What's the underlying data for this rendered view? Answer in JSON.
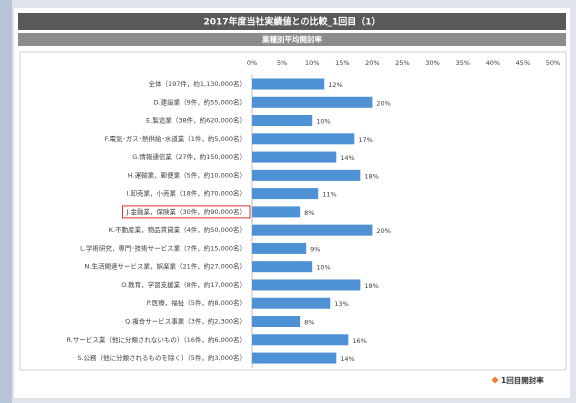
{
  "chart_data": {
    "type": "barh",
    "title": "2017年度当社実績値との比較_1回目（1）",
    "subtitle": "業種別平均開封率",
    "categories": [
      "全体（197件，約1,130,000名）",
      "D.建設業（9件，約55,000名）",
      "E.製造業（38件，約620,000名）",
      "F.電気･ガス･熱供給･水道業（1件，約5,000名）",
      "G.情報通信業（27件，約150,000名）",
      "H.運輸業，郵便業（5件，約10,000名）",
      "I.卸売業，小売業（18件，約70,000名）",
      "J.金融業，保険業（30件，約90,000名）",
      "K.不動産業，物品賃貸業（4件，約50,000名）",
      "L.学術研究，専門･技術サービス業（7件，約15,000名）",
      "N.生活関連サービス業，娯楽業（21件，約27,000名）",
      "O.教育，学習支援業（8件，約17,000名）",
      "P.医療，福祉（5件，約8,000名）",
      "Q.複合サービス事業（3件，約2,300名）",
      "R.サービス業（他に分類されないもの）（16件，約6,000名）",
      "S.公務（他に分類されるものを除く）（5件，約3,000名）"
    ],
    "series": [
      {
        "name": "1回目開封率",
        "color": "#4e91d4",
        "marker_color": "#ed7d31",
        "values": [
          12,
          20,
          10,
          17,
          14,
          18,
          11,
          8,
          20,
          9,
          10,
          18,
          13,
          8,
          16,
          14
        ],
        "value_labels": [
          "12%",
          "20%",
          "10%",
          "17%",
          "14%",
          "18%",
          "11%",
          "8%",
          "20%",
          "9%",
          "10%",
          "18%",
          "13%",
          "8%",
          "16%",
          "14%"
        ]
      }
    ],
    "xlim": [
      0,
      50
    ],
    "xticks": [
      {
        "value": 0,
        "label": "0%"
      },
      {
        "value": 5,
        "label": "5%"
      },
      {
        "value": 10,
        "label": "10%"
      },
      {
        "value": 15,
        "label": "15%"
      },
      {
        "value": 20,
        "label": "20%"
      },
      {
        "value": 25,
        "label": "25%"
      },
      {
        "value": 30,
        "label": "30%"
      },
      {
        "value": 35,
        "label": "35%"
      },
      {
        "value": 40,
        "label": "40%"
      },
      {
        "value": 45,
        "label": "45%"
      },
      {
        "value": 50,
        "label": "50%"
      }
    ],
    "highlighted_categories": [
      7
    ],
    "legend": "bottom-right"
  }
}
